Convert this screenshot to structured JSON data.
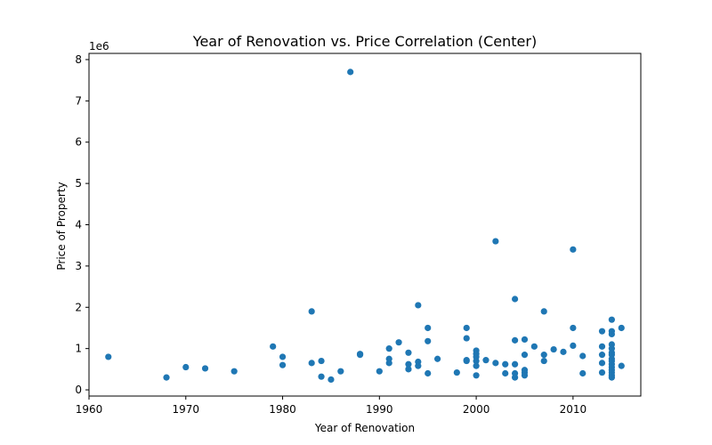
{
  "chart_data": {
    "type": "scatter",
    "title": "Year of Renovation vs. Price Correlation (Center)",
    "xlabel": "Year of Renovation",
    "ylabel": "Price of Property",
    "y_offset_label": "1e6",
    "xlim": [
      1960,
      2017
    ],
    "ylim": [
      -150000,
      8150000
    ],
    "x_ticks": [
      1960,
      1970,
      1980,
      1990,
      2000,
      2010
    ],
    "y_ticks": [
      0,
      1,
      2,
      3,
      4,
      5,
      6,
      7,
      8
    ],
    "y_scale_multiplier": 1000000,
    "point_color": "#1f77b4",
    "points": [
      [
        1962,
        800000
      ],
      [
        1968,
        300000
      ],
      [
        1970,
        550000
      ],
      [
        1972,
        520000
      ],
      [
        1975,
        450000
      ],
      [
        1979,
        1050000
      ],
      [
        1980,
        800000
      ],
      [
        1980,
        600000
      ],
      [
        1983,
        1900000
      ],
      [
        1983,
        650000
      ],
      [
        1984,
        700000
      ],
      [
        1984,
        320000
      ],
      [
        1985,
        250000
      ],
      [
        1986,
        450000
      ],
      [
        1987,
        7700000
      ],
      [
        1988,
        870000
      ],
      [
        1988,
        850000
      ],
      [
        1990,
        450000
      ],
      [
        1991,
        1000000
      ],
      [
        1991,
        750000
      ],
      [
        1991,
        650000
      ],
      [
        1992,
        1150000
      ],
      [
        1993,
        900000
      ],
      [
        1993,
        620000
      ],
      [
        1993,
        500000
      ],
      [
        1994,
        2050000
      ],
      [
        1994,
        680000
      ],
      [
        1994,
        580000
      ],
      [
        1995,
        1500000
      ],
      [
        1995,
        1180000
      ],
      [
        1995,
        400000
      ],
      [
        1996,
        750000
      ],
      [
        1998,
        420000
      ],
      [
        1999,
        1500000
      ],
      [
        1999,
        1250000
      ],
      [
        1999,
        720000
      ],
      [
        1999,
        700000
      ],
      [
        2000,
        950000
      ],
      [
        2000,
        870000
      ],
      [
        2000,
        800000
      ],
      [
        2000,
        700000
      ],
      [
        2000,
        580000
      ],
      [
        2000,
        350000
      ],
      [
        2001,
        720000
      ],
      [
        2002,
        3600000
      ],
      [
        2002,
        650000
      ],
      [
        2003,
        620000
      ],
      [
        2003,
        400000
      ],
      [
        2004,
        2200000
      ],
      [
        2004,
        1200000
      ],
      [
        2004,
        620000
      ],
      [
        2004,
        400000
      ],
      [
        2004,
        300000
      ],
      [
        2005,
        1220000
      ],
      [
        2005,
        850000
      ],
      [
        2005,
        480000
      ],
      [
        2005,
        420000
      ],
      [
        2005,
        350000
      ],
      [
        2006,
        1050000
      ],
      [
        2007,
        1900000
      ],
      [
        2007,
        850000
      ],
      [
        2007,
        700000
      ],
      [
        2008,
        980000
      ],
      [
        2009,
        920000
      ],
      [
        2010,
        3400000
      ],
      [
        2010,
        1500000
      ],
      [
        2010,
        1070000
      ],
      [
        2011,
        820000
      ],
      [
        2011,
        400000
      ],
      [
        2013,
        1420000
      ],
      [
        2013,
        1050000
      ],
      [
        2013,
        850000
      ],
      [
        2013,
        650000
      ],
      [
        2013,
        420000
      ],
      [
        2014,
        1700000
      ],
      [
        2014,
        1420000
      ],
      [
        2014,
        1350000
      ],
      [
        2014,
        1100000
      ],
      [
        2014,
        1000000
      ],
      [
        2014,
        900000
      ],
      [
        2014,
        850000
      ],
      [
        2014,
        750000
      ],
      [
        2014,
        700000
      ],
      [
        2014,
        620000
      ],
      [
        2014,
        550000
      ],
      [
        2014,
        480000
      ],
      [
        2014,
        420000
      ],
      [
        2014,
        350000
      ],
      [
        2014,
        300000
      ],
      [
        2015,
        1500000
      ],
      [
        2015,
        580000
      ]
    ]
  }
}
